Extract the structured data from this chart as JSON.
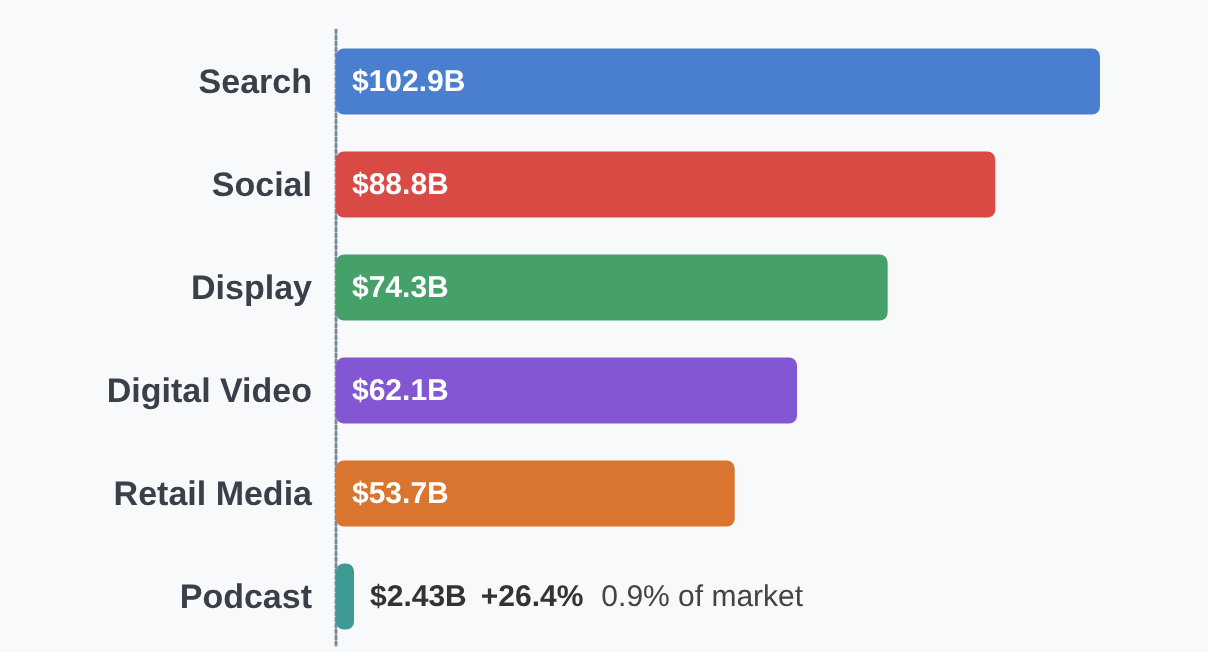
{
  "chart_data": {
    "type": "bar",
    "orientation": "horizontal",
    "categories": [
      "Search",
      "Social",
      "Display",
      "Digital Video",
      "Retail Media",
      "Podcast"
    ],
    "values": [
      102.9,
      88.8,
      74.3,
      62.1,
      53.7,
      2.43
    ],
    "colors": [
      "#4a7fcf",
      "#d94a45",
      "#45a06a",
      "#8356d3",
      "#d9752e",
      "#3f9a94"
    ],
    "value_labels": [
      "$102.9B",
      "$88.8B",
      "$74.3B",
      "$62.1B",
      "$53.7B",
      "$2.43B"
    ],
    "annotations": [
      "+26.4%",
      "0.9% of market"
    ]
  }
}
